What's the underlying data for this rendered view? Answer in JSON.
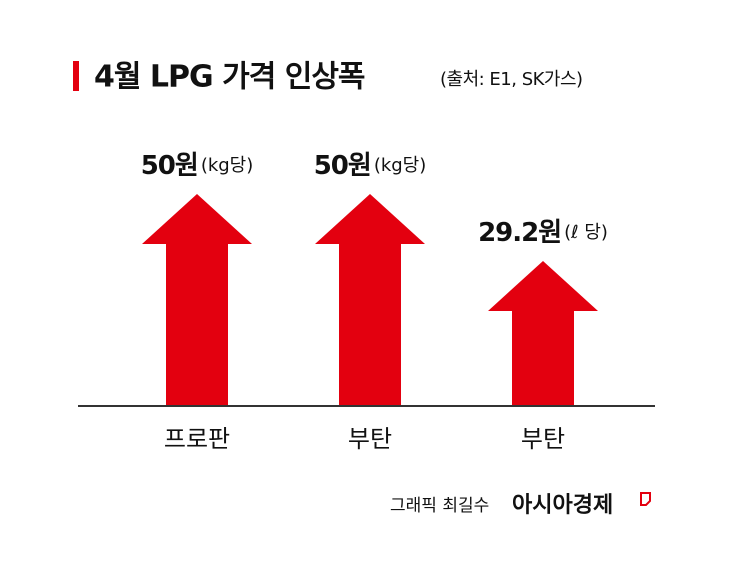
{
  "chart_data": {
    "type": "arrow-bar",
    "title": "4월 LPG 가격 인상폭",
    "subtitle": "(출처: E1, SK가스)",
    "categories": [
      "프로판",
      "부탄",
      "부탄"
    ],
    "values": [
      50,
      50,
      29.2
    ],
    "value_labels": [
      "50원",
      "50원",
      "29.2원"
    ],
    "units": [
      "(kg당)",
      "(kg당)",
      "(ℓ 당)"
    ],
    "color": "#e3000f",
    "credit": "그래픽 최길수",
    "brand": "아시아경제"
  }
}
